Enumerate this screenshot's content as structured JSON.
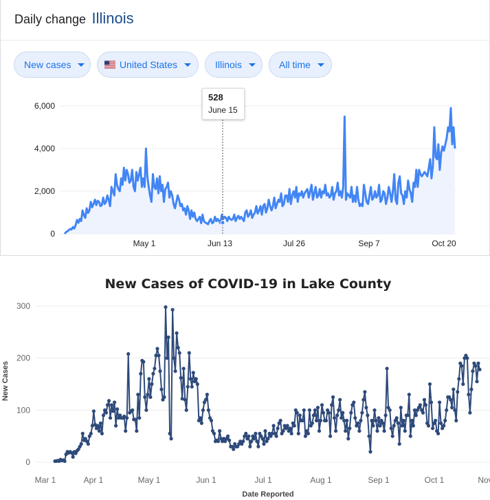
{
  "header": {
    "title_prefix": "Daily change",
    "region": "Illinois"
  },
  "filters": {
    "metric": "New cases",
    "country": "United States",
    "region": "Illinois",
    "range": "All time"
  },
  "tooltip": {
    "value": "528",
    "date": "June 15"
  },
  "colors": {
    "top_line": "#4285f4",
    "bottom_line": "#2e4a7a",
    "chip_text": "#1a73e8",
    "title_region": "#1a4e8a"
  },
  "chart_data": [
    {
      "type": "area",
      "x_axis": "date",
      "x_ticks": [
        "May 1",
        "Jun 13",
        "Jul 26",
        "Sep 7",
        "Oct 20"
      ],
      "y_ticks": [
        "0",
        "2,000",
        "4,000",
        "6,000"
      ],
      "ylim": [
        0,
        6000
      ],
      "grid": true,
      "highlight": {
        "x": "Jun 15",
        "y": 528
      },
      "values": [
        0,
        80,
        120,
        170,
        230,
        200,
        320,
        250,
        420,
        650,
        520,
        700,
        600,
        1100,
        880,
        750,
        1200,
        980,
        1100,
        1500,
        1250,
        1400,
        1600,
        1350,
        1550,
        1500,
        1300,
        1350,
        1700,
        1400,
        1500,
        1800,
        1600,
        1300,
        2200,
        2000,
        1800,
        2800,
        2300,
        2100,
        2000,
        2600,
        2300,
        3100,
        2500,
        3000,
        2800,
        2400,
        2500,
        3000,
        2200,
        2000,
        2900,
        2500,
        2800,
        3100,
        2200,
        2600,
        2200,
        4000,
        2700,
        2200,
        1800,
        1500,
        2800,
        2200,
        2100,
        2600,
        1900,
        2700,
        2000,
        2300,
        1500,
        2100,
        2200,
        2400,
        1700,
        2000,
        1800,
        1400,
        1200,
        1500,
        1800,
        1600,
        1300,
        1400,
        1100,
        1200,
        900,
        1300,
        1100,
        700,
        1100,
        800,
        1000,
        700,
        600,
        700,
        800,
        500,
        900,
        600,
        528,
        500,
        450,
        600,
        700,
        500,
        550,
        800,
        600,
        700,
        600,
        500,
        900,
        700,
        800,
        750,
        600,
        800,
        700,
        650,
        700,
        900,
        600,
        750,
        850,
        700,
        800,
        700,
        600,
        1000,
        1100,
        800,
        900,
        1100,
        750,
        900,
        1000,
        1300,
        950,
        1100,
        1300,
        900,
        1300,
        1400,
        1000,
        1200,
        1600,
        1300,
        1100,
        1300,
        1700,
        1200,
        1400,
        1600,
        1500,
        1900,
        1300,
        1400,
        1800,
        1800,
        1500,
        2100,
        1400,
        1800,
        2000,
        1700,
        2200,
        1500,
        1900,
        1800,
        2000,
        1700,
        1900,
        2000,
        2100,
        1700,
        2000,
        2300,
        1600,
        1900,
        2200,
        1700,
        1800,
        2100,
        1700,
        2000,
        1900,
        2300,
        1800,
        1900,
        1700,
        1800,
        2200,
        1600,
        1900,
        2000,
        2400,
        1800,
        2000,
        1700,
        2200,
        5500,
        1600,
        1900,
        1800,
        1700,
        2200,
        1500,
        1800,
        1500,
        2200,
        1600,
        1300,
        1400,
        1300,
        2300,
        1900,
        1500,
        1400,
        1800,
        2200,
        1600,
        1700,
        2000,
        1700,
        1800,
        2300,
        1500,
        1600,
        2000,
        1900,
        1400,
        1700,
        2200,
        1900,
        1500,
        2000,
        2800,
        1600,
        1400,
        2400,
        2700,
        1900,
        1800,
        1400,
        2000,
        1700,
        2500,
        2100,
        1900,
        1500,
        2400,
        2200,
        3000,
        2200,
        3000,
        2800,
        2700,
        2800,
        2900,
        2800,
        2700,
        3100,
        3500,
        2600,
        3200,
        5000,
        3600,
        3500,
        4200,
        3000,
        3800,
        4100,
        3900,
        4200,
        4500,
        5000,
        4800,
        5900,
        4200,
        5000,
        4000
      ]
    },
    {
      "type": "line",
      "title": "New Cases of COVID-19 in Lake County",
      "ylabel": "New Cases",
      "xlabel": "Date Reported",
      "x_ticks": [
        "Mar 1",
        "Apr 1",
        "May 1",
        "Jun 1",
        "Jul 1",
        "Aug 1",
        "Sep 1",
        "Oct 1",
        "Nov"
      ],
      "y_ticks": [
        "0",
        "100",
        "200",
        "300"
      ],
      "ylim": [
        0,
        300
      ],
      "grid": true,
      "values": [
        2,
        2,
        3,
        2,
        5,
        3,
        4,
        2,
        15,
        20,
        18,
        20,
        18,
        10,
        20,
        17,
        22,
        25,
        30,
        35,
        55,
        42,
        45,
        40,
        35,
        50,
        55,
        70,
        98,
        72,
        65,
        70,
        60,
        75,
        55,
        90,
        100,
        95,
        110,
        118,
        85,
        110,
        98,
        115,
        70,
        102,
        85,
        90,
        85,
        85,
        88,
        60,
        85,
        208,
        95,
        98,
        100,
        82,
        82,
        60,
        130,
        85,
        170,
        195,
        193,
        125,
        100,
        130,
        160,
        125,
        150,
        170,
        180,
        205,
        218,
        205,
        175,
        140,
        120,
        125,
        298,
        200,
        240,
        55,
        45,
        293,
        200,
        175,
        248,
        220,
        210,
        162,
        122,
        180,
        120,
        100,
        145,
        210,
        160,
        145,
        172,
        155,
        160,
        150,
        80,
        85,
        75,
        100,
        115,
        120,
        130,
        100,
        85,
        80,
        60,
        55,
        40,
        42,
        40,
        60,
        45,
        40,
        45,
        40,
        45,
        50,
        42,
        30,
        30,
        25,
        35,
        30,
        30,
        35,
        40,
        35,
        40,
        50,
        55,
        45,
        50,
        30,
        40,
        50,
        45,
        55,
        40,
        30,
        55,
        50,
        45,
        35,
        60,
        40,
        45,
        55,
        50,
        55,
        70,
        55,
        50,
        65,
        75,
        80,
        55,
        60,
        70,
        65,
        70,
        60,
        65,
        55,
        75,
        70,
        100,
        95,
        55,
        90,
        80,
        80,
        100,
        50,
        60,
        55,
        100,
        70,
        75,
        90,
        100,
        80,
        105,
        60,
        80,
        110,
        95,
        80,
        80,
        100,
        95,
        50,
        110,
        125,
        85,
        60,
        90,
        100,
        120,
        85,
        95,
        80,
        60,
        80,
        45,
        65,
        95,
        110,
        115,
        85,
        70,
        75,
        60,
        80,
        95,
        120,
        135,
        105,
        90,
        50,
        20,
        80,
        70,
        100,
        80,
        60,
        85,
        70,
        80,
        75,
        60,
        90,
        180,
        105,
        100,
        65,
        50,
        70,
        80,
        85,
        75,
        35,
        105,
        70,
        80,
        60,
        90,
        90,
        130,
        50,
        80,
        70,
        100,
        90,
        100,
        105,
        110,
        100,
        95,
        120,
        110,
        75,
        70,
        150,
        115,
        65,
        75,
        80,
        60,
        55,
        115,
        75,
        65,
        70,
        80,
        100,
        125,
        125,
        120,
        105,
        140,
        100,
        80,
        135,
        160,
        190,
        185,
        150,
        200,
        205,
        200,
        130,
        95,
        140,
        175,
        190,
        185,
        155,
        190,
        178
      ]
    }
  ]
}
